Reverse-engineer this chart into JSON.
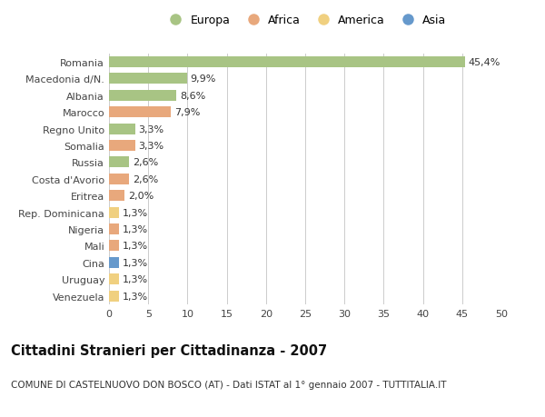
{
  "countries": [
    "Romania",
    "Macedonia d/N.",
    "Albania",
    "Marocco",
    "Regno Unito",
    "Somalia",
    "Russia",
    "Costa d'Avorio",
    "Eritrea",
    "Rep. Dominicana",
    "Nigeria",
    "Mali",
    "Cina",
    "Uruguay",
    "Venezuela"
  ],
  "values": [
    45.4,
    9.9,
    8.6,
    7.9,
    3.3,
    3.3,
    2.6,
    2.6,
    2.0,
    1.3,
    1.3,
    1.3,
    1.3,
    1.3,
    1.3
  ],
  "labels": [
    "45,4%",
    "9,9%",
    "8,6%",
    "7,9%",
    "3,3%",
    "3,3%",
    "2,6%",
    "2,6%",
    "2,0%",
    "1,3%",
    "1,3%",
    "1,3%",
    "1,3%",
    "1,3%",
    "1,3%"
  ],
  "continents": [
    "Europa",
    "Europa",
    "Europa",
    "Africa",
    "Europa",
    "Africa",
    "Europa",
    "Africa",
    "Africa",
    "America",
    "Africa",
    "Africa",
    "Asia",
    "America",
    "America"
  ],
  "colors": {
    "Europa": "#a8c484",
    "Africa": "#e8a87c",
    "America": "#f0d080",
    "Asia": "#6699cc"
  },
  "title": "Cittadini Stranieri per Cittadinanza - 2007",
  "subtitle": "COMUNE DI CASTELNUOVO DON BOSCO (AT) - Dati ISTAT al 1° gennaio 2007 - TUTTITALIA.IT",
  "xlim": [
    0,
    50
  ],
  "xticks": [
    0,
    5,
    10,
    15,
    20,
    25,
    30,
    35,
    40,
    45,
    50
  ],
  "bg_color": "#ffffff",
  "grid_color": "#cccccc",
  "bar_height": 0.65,
  "label_fontsize": 8,
  "title_fontsize": 10.5,
  "subtitle_fontsize": 7.5,
  "tick_fontsize": 8,
  "legend_fontsize": 9
}
